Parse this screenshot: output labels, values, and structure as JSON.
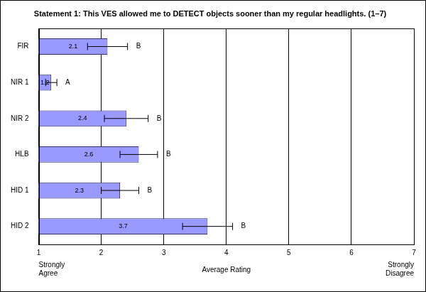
{
  "chart_data": {
    "type": "bar",
    "orientation": "horizontal",
    "title": "Statement 1: This VES allowed me to DETECT objects sooner than my regular headlights. (1–7)",
    "x_label": "Average Rating",
    "categories": [
      "FIR",
      "NIR 1",
      "NIR 2",
      "HLB",
      "HID 1",
      "HID 2"
    ],
    "values": [
      2.1,
      1.2,
      2.4,
      2.6,
      2.3,
      3.7
    ],
    "errors": [
      0.32,
      0.09,
      0.35,
      0.3,
      0.3,
      0.4
    ],
    "group_letters": [
      "B",
      "A",
      "B",
      "B",
      "B",
      "B"
    ],
    "color": "#9999ff",
    "xlim": [
      1,
      7
    ],
    "xticks": [
      1,
      2,
      3,
      4,
      5,
      6,
      7
    ],
    "grid": true,
    "data_labels": true,
    "annotations": [
      {
        "text": "Strongly Agree",
        "x": 1
      },
      {
        "text": "Strongly Disagree",
        "x": 7
      }
    ]
  }
}
